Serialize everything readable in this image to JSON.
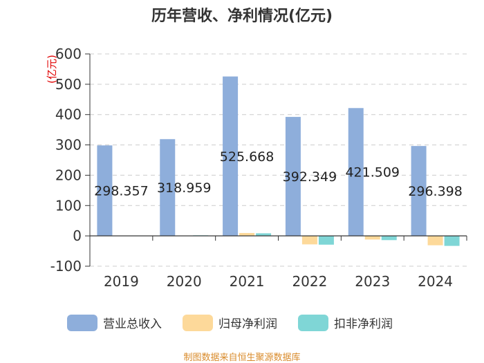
{
  "chart_data": {
    "type": "bar",
    "title": "历年营收、净利情况(亿元)",
    "ylabel": "(亿元)",
    "xlabel": "",
    "categories": [
      "2019",
      "2020",
      "2021",
      "2022",
      "2023",
      "2024"
    ],
    "ylim": [
      -100,
      600
    ],
    "yticks": [
      -100,
      0,
      100,
      200,
      300,
      400,
      500,
      600
    ],
    "grid": true,
    "legend_position": "bottom",
    "series": [
      {
        "name": "营业总收入",
        "color": "#8eaedb",
        "values": [
          298.357,
          318.959,
          525.668,
          392.349,
          421.509,
          296.398
        ]
      },
      {
        "name": "归母净利润",
        "color": "#fdd99a",
        "values": [
          1.0,
          1.2,
          9.5,
          -28.0,
          -12.0,
          -31.0
        ]
      },
      {
        "name": "扣非净利润",
        "color": "#7fd6d6",
        "values": [
          1.5,
          2.0,
          8.5,
          -29.0,
          -14.0,
          -33.0
        ]
      }
    ],
    "data_labels": [
      "298.357",
      "318.959",
      "525.668",
      "392.349",
      "421.509",
      "296.398"
    ]
  },
  "source": "制图数据来自恒生聚源数据库"
}
